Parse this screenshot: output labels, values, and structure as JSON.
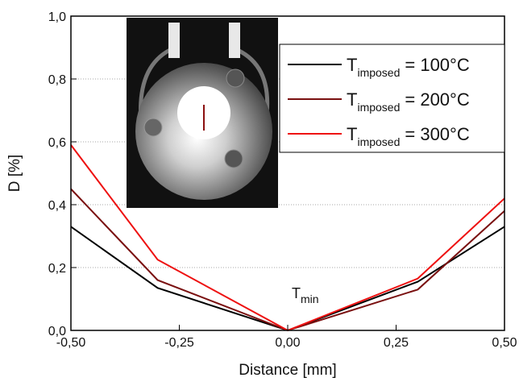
{
  "chart_data": {
    "type": "line",
    "x_label": "Distance [mm]",
    "y_label": "D  [%]",
    "x": [
      -0.5,
      -0.3,
      0,
      0.3,
      0.5
    ],
    "series": [
      {
        "name": "T",
        "subscript": "imposed",
        "label": "= 100°C",
        "color": "#000000",
        "values": [
          0.33,
          0.135,
          0,
          0.155,
          0.33
        ]
      },
      {
        "name": "T",
        "subscript": "imposed",
        "label": "= 200°C",
        "color": "#7a1010",
        "values": [
          0.45,
          0.16,
          0,
          0.13,
          0.38
        ]
      },
      {
        "name": "T",
        "subscript": "imposed",
        "label": "= 300°C",
        "color": "#ee1111",
        "values": [
          0.59,
          0.225,
          0,
          0.165,
          0.42
        ]
      }
    ],
    "xlim": [
      -0.5,
      0.5
    ],
    "ylim": [
      0,
      1
    ],
    "xticks": [
      {
        "value": -0.5,
        "label": "-0,50"
      },
      {
        "value": -0.25,
        "label": "-0,25"
      },
      {
        "value": 0,
        "label": "0,00"
      },
      {
        "value": 0.25,
        "label": "0,25"
      },
      {
        "value": 0.5,
        "label": "0,50"
      }
    ],
    "yticks": [
      {
        "value": 0,
        "label": "0,0"
      },
      {
        "value": 0.2,
        "label": "0,2"
      },
      {
        "value": 0.4,
        "label": "0,4"
      },
      {
        "value": 0.6,
        "label": "0,6"
      },
      {
        "value": 0.8,
        "label": "0,8"
      },
      {
        "value": 1,
        "label": "1,0"
      }
    ],
    "grid": true,
    "legend": "upper right",
    "annotation": {
      "text": "T",
      "subscript": "min"
    }
  }
}
